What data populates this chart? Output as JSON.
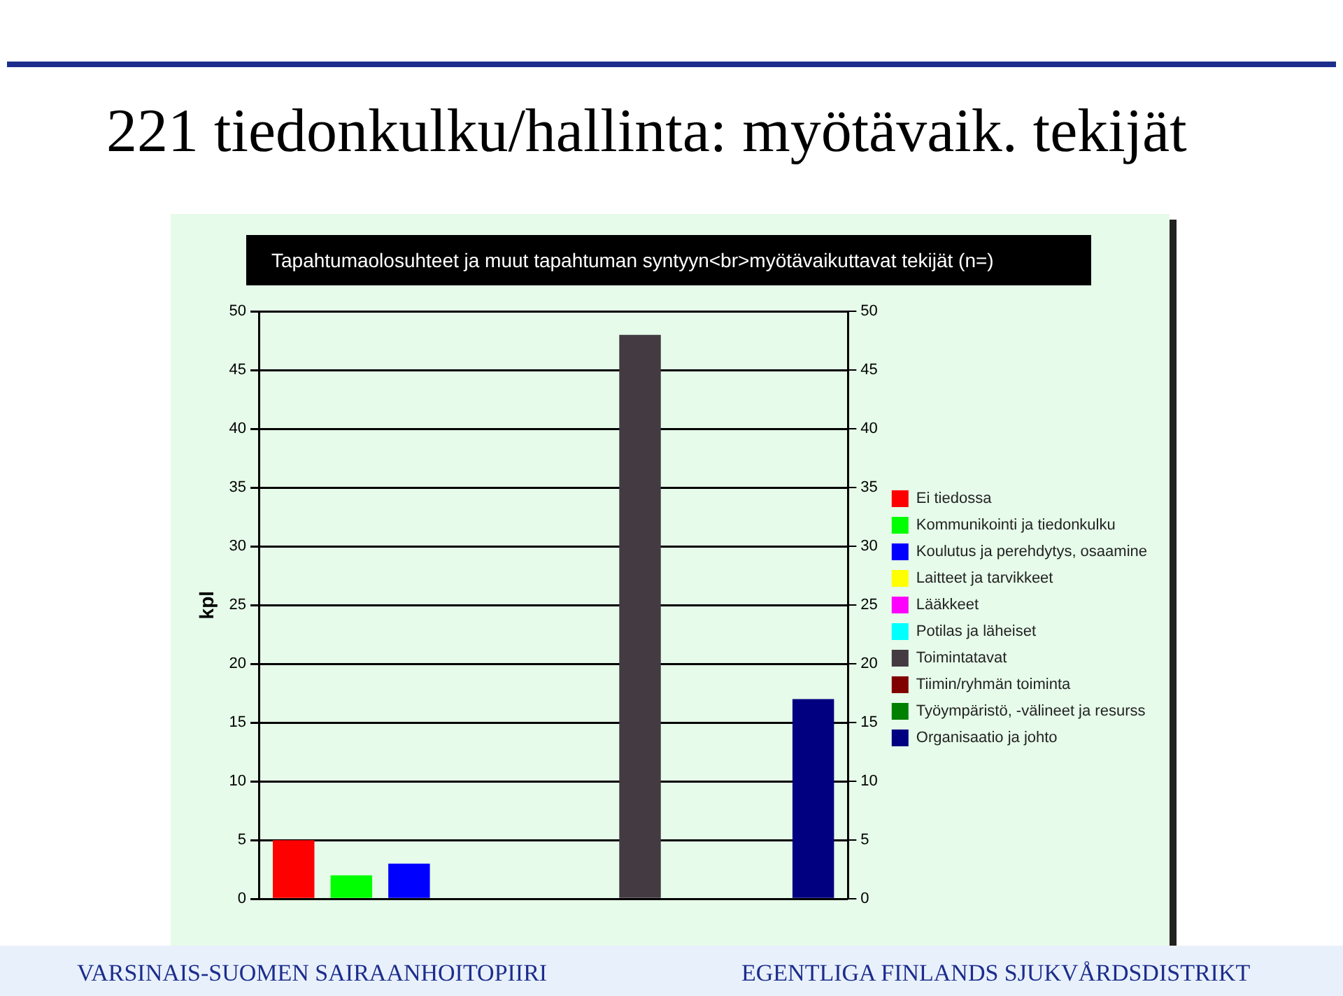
{
  "chart_data": {
    "type": "bar",
    "title": "221 tiedonkulku/hallinta: myötävaik. tekijät",
    "subtitle": "Tapahtumaolosuhteet ja muut tapahtuman syntyyn<br>myötävaikuttavat tekijät (n=)",
    "ylabel": "kpl",
    "categories": [
      null
    ],
    "series": [
      {
        "name": "Ei tiedossa",
        "color": "#ff0000",
        "values": [
          5
        ]
      },
      {
        "name": "Kommunikointi ja tiedonkulku",
        "color": "#00ff00",
        "values": [
          2
        ]
      },
      {
        "name": "Koulutus ja perehdytys, osaamine",
        "color": "#0000ff",
        "values": [
          3
        ]
      },
      {
        "name": "Laitteet ja tarvikkeet",
        "color": "#ffff00",
        "values": [
          0
        ]
      },
      {
        "name": "Lääkkeet",
        "color": "#ff00ff",
        "values": [
          0
        ]
      },
      {
        "name": "Potilas ja läheiset",
        "color": "#00ffff",
        "values": [
          0
        ]
      },
      {
        "name": "Toimintatavat",
        "color": "#433a42",
        "values": [
          48
        ]
      },
      {
        "name": "Tiimin/ryhmän toiminta",
        "color": "#800000",
        "values": [
          0
        ]
      },
      {
        "name": "Työympäristö, -välineet ja resurss",
        "color": "#008000",
        "values": [
          0
        ]
      },
      {
        "name": "Organisaatio ja johto",
        "color": "#000080",
        "values": [
          17
        ]
      }
    ],
    "ylim": [
      0,
      50
    ],
    "yticks": [
      0,
      5,
      10,
      15,
      20,
      25,
      30,
      35,
      40,
      45,
      50
    ],
    "y2lim": [
      0,
      50
    ],
    "y2ticks": [
      0,
      5,
      10,
      15,
      20,
      25,
      30,
      35,
      40,
      45,
      50
    ],
    "grid": "y",
    "legend": "right",
    "annotations": [
      "VARSINAIS-SUOMEN SAIRAANHOITOPIIRI",
      "EGENTLIGA FINLANDS SJUKVÅRDSDISTRIKT"
    ]
  }
}
